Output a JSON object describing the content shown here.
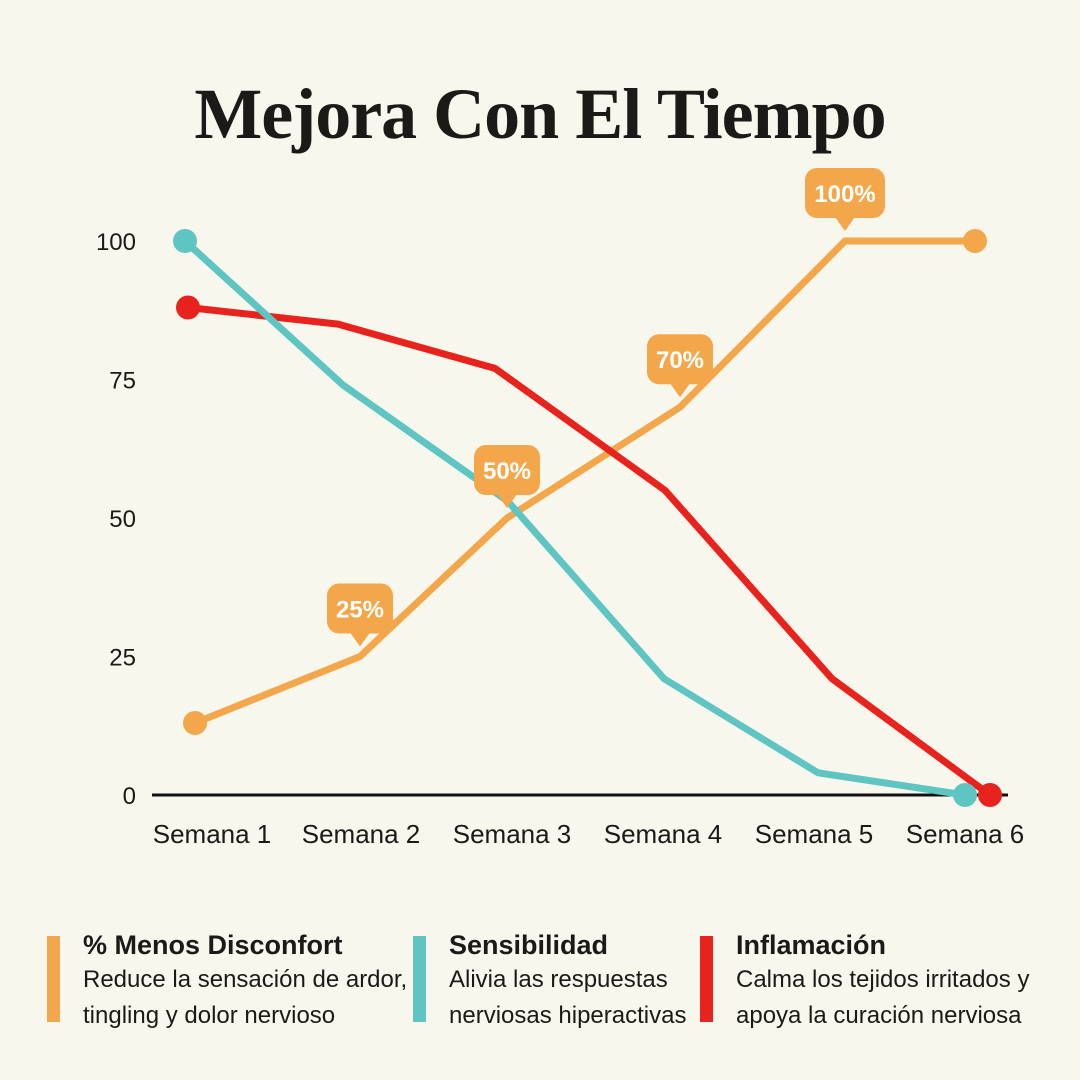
{
  "title": "Mejora Con El Tiempo",
  "colors": {
    "background": "#F8F7EE",
    "text": "#1B1A17",
    "axis": "#111111",
    "bubble_text": "#FFFFFF",
    "orange": "#F4A74A",
    "teal": "#5EC5C2",
    "red": "#E8221C"
  },
  "chart_data": {
    "type": "line",
    "title": "Mejora Con El Tiempo",
    "xlabel": "",
    "ylabel": "",
    "categories": [
      "Semana 1",
      "Semana 2",
      "Semana 3",
      "Semana 4",
      "Semana 5",
      "Semana 6"
    ],
    "y_ticks": [
      0,
      25,
      50,
      75,
      100
    ],
    "ylim": [
      0,
      100
    ],
    "grid": false,
    "legend_position": "bottom",
    "series": [
      {
        "name": "% Menos Disconfort",
        "color_key": "orange",
        "values": [
          13,
          25,
          50,
          70,
          100,
          100
        ],
        "point_labels": [
          null,
          "25%",
          "50%",
          "70%",
          "100%",
          null
        ],
        "end_dots": true
      },
      {
        "name": "Sensibilidad",
        "color_key": "teal",
        "values": [
          100,
          74,
          53,
          21,
          4,
          0
        ],
        "point_labels": [
          null,
          null,
          null,
          null,
          null,
          null
        ],
        "end_dots": true
      },
      {
        "name": "Inflamación",
        "color_key": "red",
        "values": [
          88,
          85,
          77,
          55,
          21,
          0
        ],
        "point_labels": [
          null,
          null,
          null,
          null,
          null,
          null
        ],
        "end_dots": true
      }
    ]
  },
  "legend": {
    "items": [
      {
        "title": "% Menos Disconfort",
        "color_key": "orange",
        "lines": [
          "Reduce la sensación de ardor,",
          "tingling y dolor nervioso"
        ]
      },
      {
        "title": "Sensibilidad",
        "color_key": "teal",
        "lines": [
          "Alivia las respuestas",
          "nerviosas hiperactivas"
        ]
      },
      {
        "title": "Inflamación",
        "color_key": "red",
        "lines": [
          "Calma los tejidos irritados y",
          "apoya la curación nerviosa"
        ]
      }
    ]
  }
}
